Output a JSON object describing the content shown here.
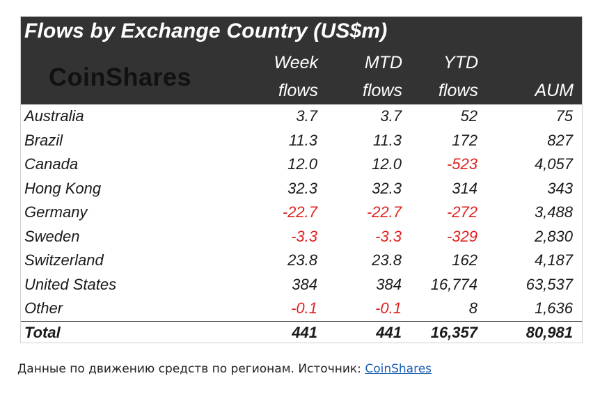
{
  "table": {
    "title": "Flows by Exchange Country (US$m)",
    "logo_text": "CoinShares",
    "columns": [
      {
        "line1": "Week",
        "line2": "flows"
      },
      {
        "line1": "MTD",
        "line2": "flows"
      },
      {
        "line1": "YTD",
        "line2": "flows"
      },
      {
        "line1": "",
        "line2": "AUM"
      }
    ],
    "rows": [
      {
        "country": "Australia",
        "week": "3.7",
        "mtd": "3.7",
        "ytd": "52",
        "aum": "75"
      },
      {
        "country": "Brazil",
        "week": "11.3",
        "mtd": "11.3",
        "ytd": "172",
        "aum": "827"
      },
      {
        "country": "Canada",
        "week": "12.0",
        "mtd": "12.0",
        "ytd": "-523",
        "aum": "4,057"
      },
      {
        "country": "Hong Kong",
        "week": "32.3",
        "mtd": "32.3",
        "ytd": "314",
        "aum": "343"
      },
      {
        "country": "Germany",
        "week": "-22.7",
        "mtd": "-22.7",
        "ytd": "-272",
        "aum": "3,488"
      },
      {
        "country": "Sweden",
        "week": "-3.3",
        "mtd": "-3.3",
        "ytd": "-329",
        "aum": "2,830"
      },
      {
        "country": "Switzerland",
        "week": "23.8",
        "mtd": "23.8",
        "ytd": "162",
        "aum": "4,187"
      },
      {
        "country": "United States",
        "week": "384",
        "mtd": "384",
        "ytd": "16,774",
        "aum": "63,537"
      },
      {
        "country": "Other",
        "week": "-0.1",
        "mtd": "-0.1",
        "ytd": "8",
        "aum": "1,636"
      }
    ],
    "total": {
      "country": "Total",
      "week": "441",
      "mtd": "441",
      "ytd": "16,357",
      "aum": "80,981"
    }
  },
  "caption": {
    "text": "Данные по движению средств по регионам. Источник: ",
    "link_text": "CoinShares"
  },
  "colors": {
    "header_bg": "#333333",
    "negative": "#e0201d",
    "link": "#1a5fb4"
  }
}
